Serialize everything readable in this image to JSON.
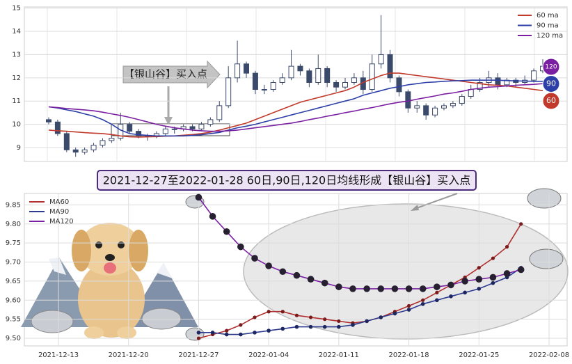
{
  "chart_data": [
    {
      "type": "candlestick",
      "annotation": "【银山谷】买入点",
      "end_labels": [
        "120",
        "90",
        "60"
      ],
      "ylim": [
        8.4,
        15.05
      ],
      "yticks": [
        9,
        10,
        11,
        12,
        13,
        14,
        15
      ],
      "grid": true,
      "legend": "upper right",
      "candle_color": "#3b4a6b",
      "open": [
        10.2,
        10.1,
        9.6,
        8.9,
        8.8,
        8.9,
        9.1,
        9.3,
        9.4,
        10.0,
        9.7,
        9.5,
        9.5,
        9.6,
        9.8,
        9.8,
        9.9,
        9.8,
        10.0,
        10.2,
        10.8,
        12.0,
        12.6,
        12.2,
        11.5,
        11.5,
        11.8,
        12.0,
        12.5,
        12.3,
        11.8,
        12.4,
        11.8,
        11.6,
        11.8,
        12.0,
        11.5,
        12.6,
        13.0,
        12.0,
        11.4,
        10.7,
        10.8,
        10.4,
        10.7,
        10.8,
        10.9,
        11.2,
        11.5,
        11.8,
        12.0,
        11.7,
        11.9,
        11.8,
        11.9,
        12.3
      ],
      "high": [
        10.3,
        10.2,
        9.7,
        9.0,
        9.0,
        9.2,
        9.4,
        9.5,
        10.5,
        10.1,
        9.8,
        9.6,
        9.7,
        9.9,
        9.9,
        10.0,
        10.0,
        10.1,
        10.3,
        11.0,
        12.5,
        13.6,
        12.7,
        12.3,
        11.7,
        11.9,
        12.2,
        13.2,
        12.6,
        12.4,
        13.0,
        12.5,
        11.9,
        12.0,
        12.2,
        12.3,
        13.0,
        14.7,
        13.2,
        12.1,
        11.5,
        11.0,
        10.9,
        10.8,
        10.9,
        11.0,
        11.3,
        11.7,
        12.0,
        12.3,
        12.2,
        12.0,
        12.0,
        12.1,
        12.4,
        12.8
      ],
      "low": [
        10.0,
        9.5,
        8.8,
        8.6,
        8.7,
        8.8,
        9.0,
        9.2,
        9.3,
        9.6,
        9.4,
        9.3,
        9.4,
        9.5,
        9.6,
        9.7,
        9.7,
        9.7,
        9.9,
        10.1,
        10.7,
        11.8,
        12.0,
        11.3,
        11.3,
        11.4,
        11.7,
        11.9,
        12.1,
        11.6,
        11.7,
        11.6,
        11.4,
        11.5,
        11.7,
        11.3,
        11.4,
        12.4,
        11.8,
        11.2,
        10.5,
        10.5,
        10.2,
        10.3,
        10.6,
        10.7,
        10.8,
        11.1,
        11.4,
        11.6,
        11.5,
        11.6,
        11.6,
        11.7,
        11.8,
        12.2
      ],
      "close": [
        10.1,
        9.6,
        8.9,
        8.8,
        8.9,
        9.1,
        9.3,
        9.4,
        10.0,
        9.7,
        9.5,
        9.5,
        9.6,
        9.8,
        9.8,
        9.9,
        9.8,
        10.0,
        10.2,
        10.8,
        12.0,
        12.6,
        12.2,
        11.5,
        11.5,
        11.8,
        12.0,
        12.5,
        12.3,
        11.8,
        12.4,
        11.8,
        11.6,
        11.8,
        12.0,
        11.5,
        12.6,
        13.0,
        12.0,
        11.4,
        10.7,
        10.8,
        10.4,
        10.7,
        10.8,
        10.9,
        11.2,
        11.5,
        11.8,
        12.0,
        11.7,
        11.9,
        11.8,
        11.9,
        12.3,
        12.5
      ],
      "series": [
        {
          "name": "60 ma",
          "color": "#c0392b",
          "values": [
            9.75,
            9.72,
            9.7,
            9.67,
            9.64,
            9.62,
            9.6,
            9.56,
            9.5,
            9.46,
            9.45,
            9.46,
            9.47,
            9.49,
            9.5,
            9.53,
            9.56,
            9.6,
            9.66,
            9.75,
            9.85,
            9.95,
            10.05,
            10.2,
            10.35,
            10.5,
            10.65,
            10.8,
            10.95,
            11.05,
            11.15,
            11.25,
            11.35,
            11.45,
            11.6,
            11.8,
            11.95,
            12.1,
            12.2,
            12.2,
            12.15,
            12.1,
            12.05,
            12.0,
            11.95,
            11.9,
            11.85,
            11.8,
            11.75,
            11.7,
            11.68,
            11.65,
            11.6,
            11.55,
            11.5,
            11.45
          ]
        },
        {
          "name": "90 ma",
          "color": "#2c3fa8",
          "values": [
            10.75,
            10.7,
            10.62,
            10.55,
            10.45,
            10.35,
            10.2,
            10.0,
            9.75,
            9.6,
            9.55,
            9.52,
            9.5,
            9.5,
            9.5,
            9.5,
            9.52,
            9.55,
            9.6,
            9.65,
            9.75,
            9.85,
            9.92,
            10.0,
            10.1,
            10.2,
            10.3,
            10.4,
            10.5,
            10.6,
            10.7,
            10.8,
            10.9,
            11.0,
            11.1,
            11.25,
            11.35,
            11.45,
            11.55,
            11.62,
            11.7,
            11.75,
            11.8,
            11.82,
            11.85,
            11.87,
            11.88,
            11.9,
            11.9,
            11.9,
            11.9,
            11.88,
            11.87,
            11.86,
            11.85,
            11.85
          ]
        },
        {
          "name": "120 ma",
          "color": "#7b1fa2",
          "values": [
            10.75,
            10.72,
            10.68,
            10.65,
            10.62,
            10.58,
            10.52,
            10.45,
            10.38,
            10.3,
            10.2,
            10.1,
            10.0,
            9.92,
            9.85,
            9.8,
            9.75,
            9.72,
            9.7,
            9.7,
            9.72,
            9.75,
            9.8,
            9.85,
            9.9,
            9.95,
            10.0,
            10.05,
            10.12,
            10.2,
            10.27,
            10.35,
            10.42,
            10.5,
            10.57,
            10.65,
            10.72,
            10.8,
            10.88,
            10.95,
            11.0,
            11.08,
            11.15,
            11.22,
            11.3,
            11.35,
            11.42,
            11.5,
            11.55,
            11.6,
            11.62,
            11.65,
            11.68,
            11.7,
            11.72,
            11.75
          ]
        }
      ]
    },
    {
      "type": "line",
      "title": "2021-12-27至2022-01-28 60日,90日,120日均线形成【银山谷】买入点",
      "categories": [
        "2021-12-13",
        null,
        null,
        null,
        null,
        "2021-12-20",
        null,
        null,
        null,
        null,
        "2021-12-27",
        null,
        null,
        null,
        null,
        "2022-01-04",
        null,
        null,
        null,
        null,
        "2022-01-11",
        null,
        null,
        null,
        null,
        "2022-01-18",
        null,
        null,
        null,
        null,
        "2022-01-25",
        null,
        null,
        null,
        null,
        "2022-02-08"
      ],
      "ylim": [
        9.48,
        9.88
      ],
      "yticks": [
        {
          "value": 9.5,
          "label": "9.50"
        },
        9.55,
        {
          "value": 9.6,
          "label": "9.60"
        },
        9.65,
        {
          "value": 9.7,
          "label": "9.70"
        },
        9.75,
        {
          "value": 9.8,
          "label": "9.80"
        },
        9.85
      ],
      "grid": true,
      "legend": "upper left",
      "series": [
        {
          "name": "MA60",
          "color": "#b03030",
          "values": [
            null,
            null,
            null,
            null,
            null,
            null,
            null,
            null,
            null,
            null,
            9.5,
            9.51,
            9.52,
            9.535,
            9.555,
            9.57,
            9.57,
            9.56,
            9.555,
            9.55,
            9.545,
            9.54,
            9.545,
            9.555,
            9.57,
            9.585,
            9.6,
            9.62,
            9.64,
            9.66,
            9.685,
            9.71,
            9.74,
            9.8,
            null,
            null
          ]
        },
        {
          "name": "MA90",
          "color": "#2c3a90",
          "values": [
            null,
            null,
            null,
            null,
            null,
            null,
            null,
            null,
            null,
            null,
            9.515,
            9.515,
            9.51,
            9.51,
            9.515,
            9.52,
            9.525,
            9.53,
            9.53,
            9.53,
            9.53,
            9.535,
            9.545,
            9.555,
            9.565,
            9.575,
            9.59,
            9.6,
            9.61,
            9.62,
            9.63,
            9.645,
            9.66,
            9.685,
            null,
            null
          ]
        },
        {
          "name": "MA120",
          "color": "#7a1fa2",
          "values": [
            null,
            null,
            null,
            null,
            null,
            null,
            null,
            null,
            null,
            null,
            9.87,
            9.82,
            9.78,
            9.74,
            9.71,
            9.69,
            9.675,
            9.665,
            9.655,
            9.645,
            9.635,
            9.63,
            9.63,
            9.63,
            9.63,
            9.63,
            9.63,
            9.635,
            9.64,
            9.65,
            9.655,
            9.66,
            9.67,
            9.68,
            null,
            null
          ]
        }
      ]
    }
  ]
}
